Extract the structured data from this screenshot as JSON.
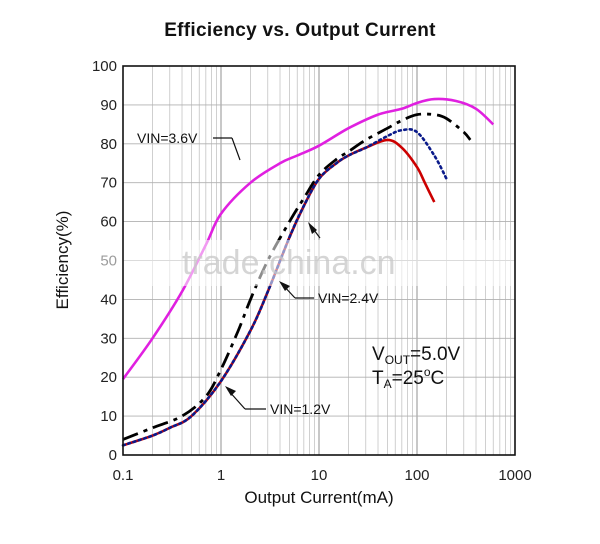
{
  "chart_data": {
    "type": "line",
    "title": "Efficiency vs. Output Current",
    "xlabel": "Output Current(mA)",
    "ylabel": "Efficiency(%)",
    "x_scale": "log",
    "xlim": [
      0.1,
      1000
    ],
    "ylim": [
      0,
      100
    ],
    "x_ticks": [
      "0.1",
      "1",
      "10",
      "100",
      "1000"
    ],
    "y_ticks": [
      "0",
      "10",
      "20",
      "30",
      "40",
      "50",
      "60",
      "70",
      "80",
      "90",
      "100"
    ],
    "grid": true,
    "series": [
      {
        "name": "VIN=3.6V",
        "color": "#e020e0",
        "style": "solid",
        "x": [
          0.1,
          0.2,
          0.4,
          0.7,
          1,
          2,
          4,
          6,
          10,
          20,
          40,
          70,
          100,
          150,
          250,
          400,
          600
        ],
        "y": [
          19.5,
          30,
          42,
          54,
          62,
          70,
          75,
          77,
          79.5,
          84,
          87.5,
          89,
          90.5,
          91.5,
          91,
          89,
          85
        ]
      },
      {
        "name": "VIN=2.4V",
        "color": "#000000",
        "style": "longdash",
        "x": [
          0.1,
          0.2,
          0.4,
          0.7,
          1,
          1.5,
          2,
          3,
          5,
          7,
          10,
          15,
          20,
          30,
          50,
          70,
          100,
          150,
          200,
          300,
          350
        ],
        "y": [
          4,
          7,
          10,
          15,
          22,
          32,
          40,
          50,
          60,
          66,
          72,
          76,
          78,
          81,
          84,
          86,
          87.5,
          87.5,
          86.5,
          83,
          81
        ]
      },
      {
        "name": "VIN=1.2V",
        "color": "#cc0000",
        "style": "solid",
        "x": [
          0.1,
          0.2,
          0.3,
          0.5,
          1,
          2,
          3,
          5,
          7,
          10,
          15,
          20,
          30,
          50,
          70,
          100,
          120,
          150
        ],
        "y": [
          2.5,
          5,
          7,
          10,
          19,
          32,
          42,
          56,
          64,
          71,
          75,
          77,
          79,
          81,
          79,
          74,
          70,
          65
        ]
      },
      {
        "name": "",
        "color": "#0a1a8a",
        "style": "dotted",
        "x": [
          0.1,
          0.2,
          0.3,
          0.5,
          1,
          2,
          3,
          5,
          7,
          10,
          15,
          20,
          30,
          50,
          70,
          100,
          150,
          200
        ],
        "y": [
          2.5,
          5,
          7,
          10,
          19,
          32,
          42,
          56,
          64,
          71,
          75,
          77,
          79,
          82,
          83.5,
          83,
          77,
          71
        ]
      }
    ],
    "annotations": {
      "vin_36": "VIN=3.6V",
      "vin_24": "VIN=2.4V",
      "vin_12": "VIN=1.2V",
      "vout_prefix": "V",
      "vout_sub": "OUT",
      "vout_value": "=5.0V",
      "ta_prefix": "T",
      "ta_sub": "A",
      "ta_value": "=25",
      "ta_deg": "o",
      "ta_unit": "C"
    },
    "watermark": "trade.china.cn"
  }
}
